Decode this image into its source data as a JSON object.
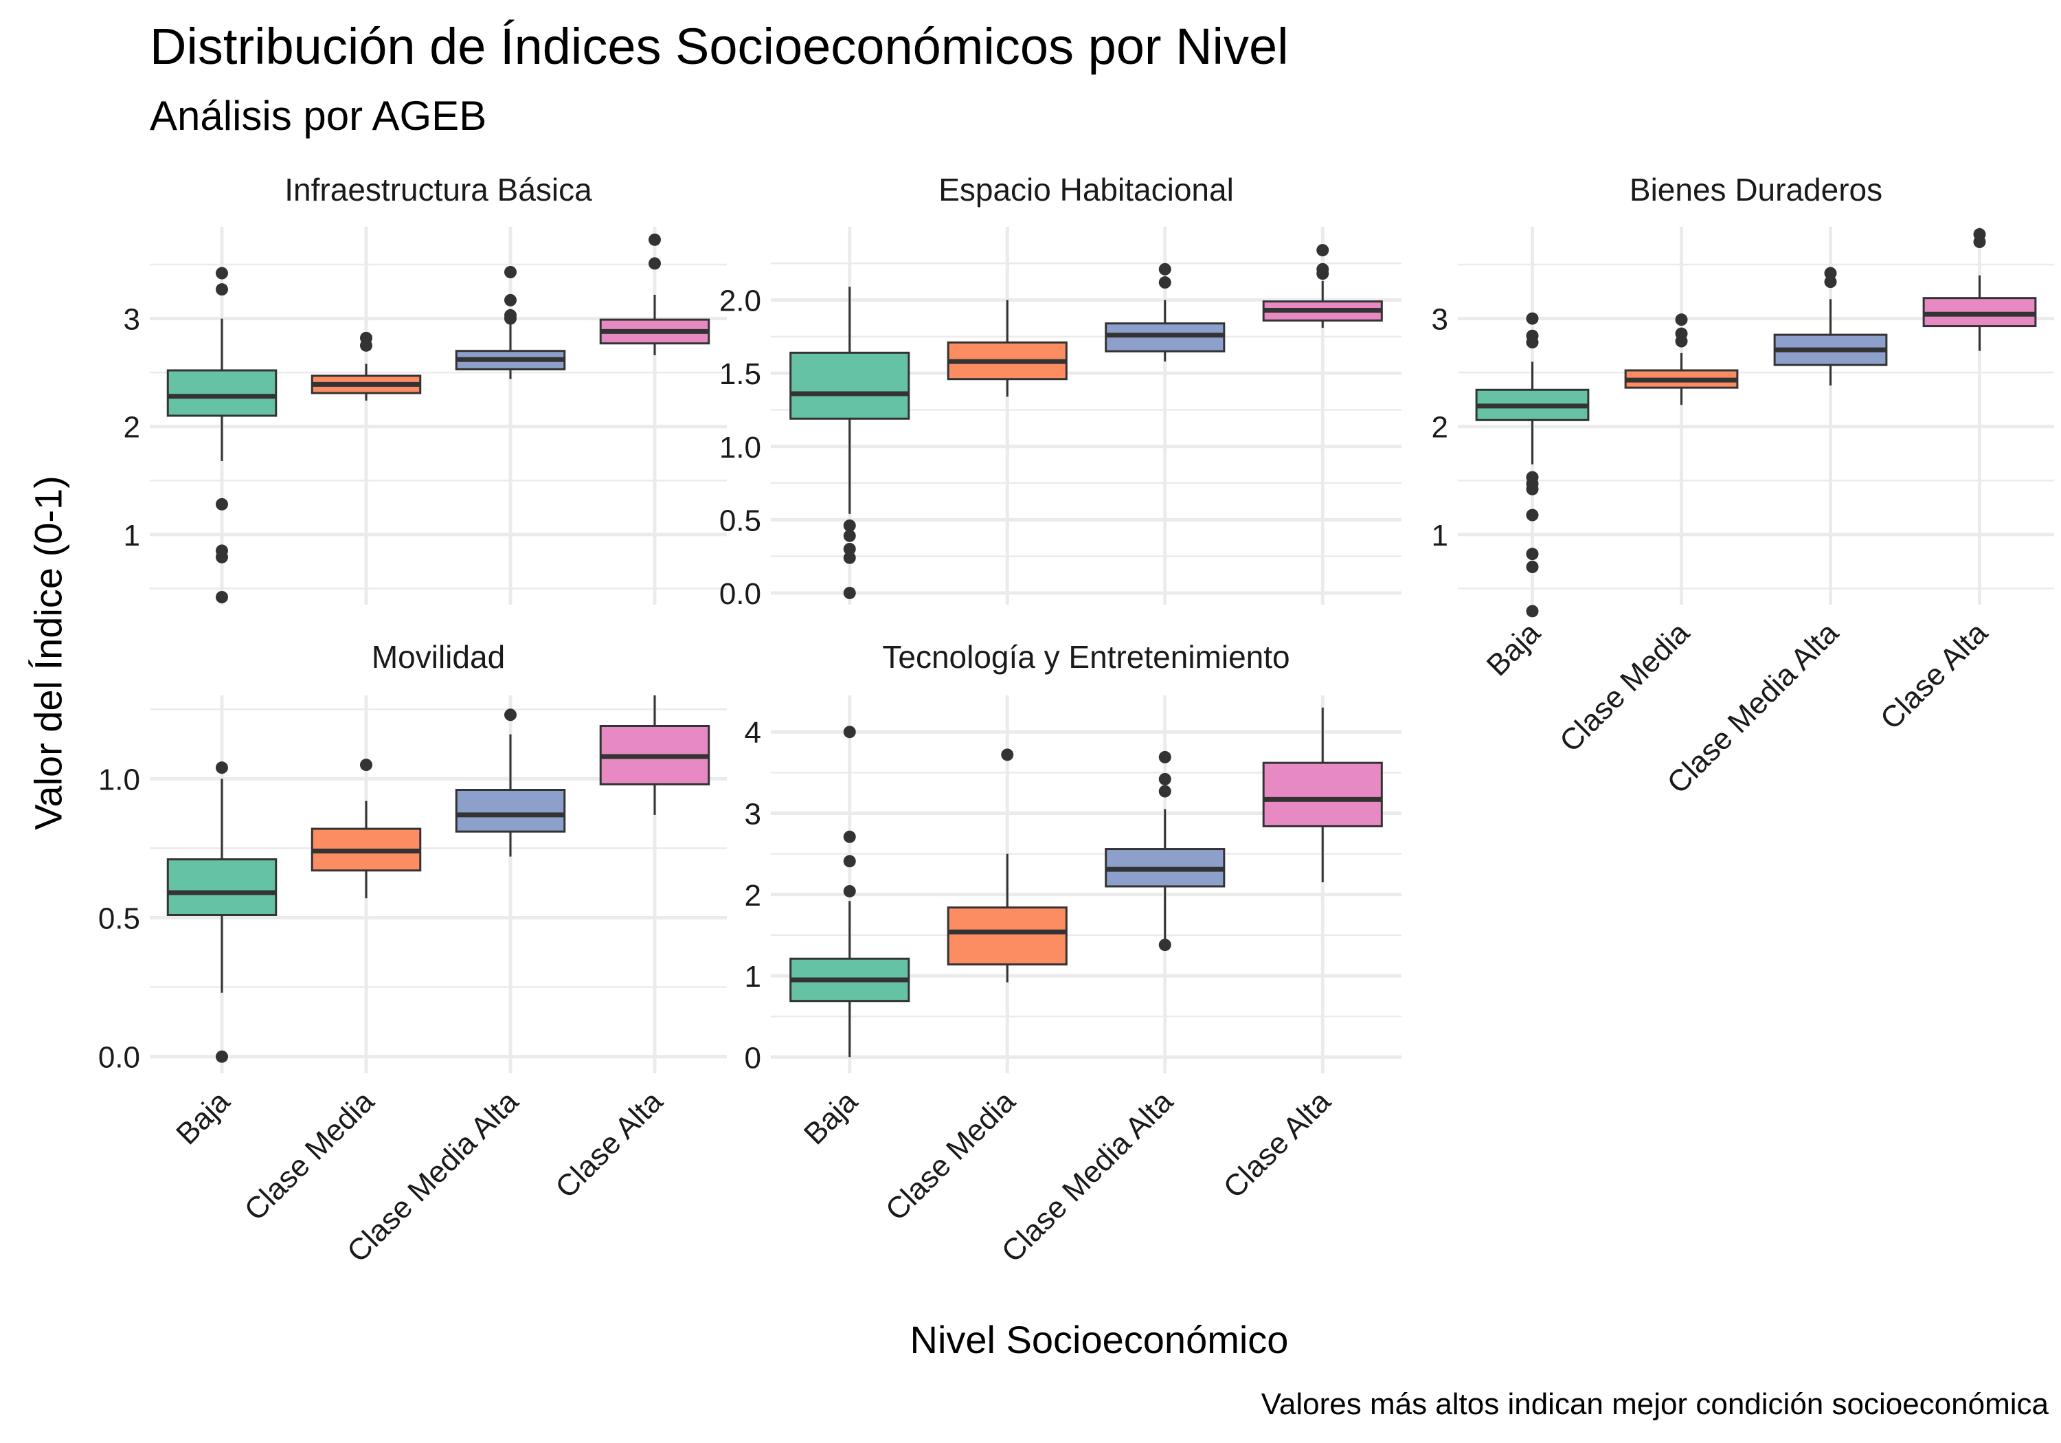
{
  "title": "Distribución de Índices Socioeconómicos por Nivel",
  "subtitle": "Análisis por AGEB",
  "ylabel": "Valor del Índice (0-1)",
  "xlabel": "Nivel Socioeconómico",
  "caption": "Valores más altos indican mejor condición socioeconómica",
  "colors": {
    "Baja": "#66c2a5",
    "Clase Media": "#fc8d62",
    "Clase Media Alta": "#8da0cb",
    "Clase Alta": "#e78ac3",
    "gridline": "#ebebeb",
    "box_outline": "#333333",
    "outlier": "#333333"
  },
  "chart_data": [
    {
      "type": "boxplot",
      "title": "Infraestructura Básica",
      "categories": [
        "Baja",
        "Clase Media",
        "Clase Media Alta",
        "Clase Alta"
      ],
      "ylim": [
        0.35,
        3.85
      ],
      "yticks": [
        1,
        2,
        3
      ],
      "boxes": [
        {
          "category": "Baja",
          "whisker_low": 1.68,
          "q1": 2.1,
          "median": 2.28,
          "q3": 2.52,
          "whisker_high": 3.0,
          "outliers": [
            0.42,
            0.79,
            0.85,
            1.28,
            3.27,
            3.42
          ]
        },
        {
          "category": "Clase Media",
          "whisker_low": 2.24,
          "q1": 2.31,
          "median": 2.39,
          "q3": 2.47,
          "whisker_high": 2.58,
          "outliers": [
            2.75,
            2.82
          ]
        },
        {
          "category": "Clase Media Alta",
          "whisker_low": 2.44,
          "q1": 2.53,
          "median": 2.62,
          "q3": 2.7,
          "whisker_high": 2.95,
          "outliers": [
            3.0,
            3.03,
            3.17,
            3.43
          ]
        },
        {
          "category": "Clase Alta",
          "whisker_low": 2.66,
          "q1": 2.77,
          "median": 2.88,
          "q3": 2.99,
          "whisker_high": 3.22,
          "outliers": [
            3.51,
            3.73
          ]
        }
      ]
    },
    {
      "type": "boxplot",
      "title": "Espacio Habitacional",
      "categories": [
        "Baja",
        "Clase Media",
        "Clase Media Alta",
        "Clase Alta"
      ],
      "ylim": [
        -0.08,
        2.5
      ],
      "yticks": [
        0.0,
        0.5,
        1.0,
        1.5,
        2.0
      ],
      "ytick_labels": [
        "0.0",
        "0.5",
        "1.0",
        "1.5",
        "2.0"
      ],
      "boxes": [
        {
          "category": "Baja",
          "whisker_low": 0.54,
          "q1": 1.19,
          "median": 1.36,
          "q3": 1.64,
          "whisker_high": 2.09,
          "outliers": [
            0.0,
            0.24,
            0.3,
            0.39,
            0.46
          ]
        },
        {
          "category": "Clase Media",
          "whisker_low": 1.34,
          "q1": 1.46,
          "median": 1.58,
          "q3": 1.71,
          "whisker_high": 2.0,
          "outliers": []
        },
        {
          "category": "Clase Media Alta",
          "whisker_low": 1.58,
          "q1": 1.65,
          "median": 1.76,
          "q3": 1.84,
          "whisker_high": 2.0,
          "outliers": [
            2.12,
            2.21
          ]
        },
        {
          "category": "Clase Alta",
          "whisker_low": 1.81,
          "q1": 1.86,
          "median": 1.93,
          "q3": 1.99,
          "whisker_high": 2.13,
          "outliers": [
            2.18,
            2.21,
            2.34
          ]
        }
      ]
    },
    {
      "type": "boxplot",
      "title": "Bienes Duraderos",
      "categories": [
        "Baja",
        "Clase Media",
        "Clase Media Alta",
        "Clase Alta"
      ],
      "ylim": [
        0.35,
        3.85
      ],
      "yticks": [
        1,
        2,
        3
      ],
      "boxes": [
        {
          "category": "Baja",
          "whisker_low": 1.65,
          "q1": 2.06,
          "median": 2.19,
          "q3": 2.34,
          "whisker_high": 2.6,
          "outliers": [
            0.29,
            0.7,
            0.82,
            1.18,
            1.42,
            1.47,
            1.53,
            2.78,
            2.84,
            3.0
          ]
        },
        {
          "category": "Clase Media",
          "whisker_low": 2.2,
          "q1": 2.36,
          "median": 2.43,
          "q3": 2.52,
          "whisker_high": 2.68,
          "outliers": [
            2.79,
            2.86,
            2.99
          ]
        },
        {
          "category": "Clase Media Alta",
          "whisker_low": 2.38,
          "q1": 2.57,
          "median": 2.71,
          "q3": 2.85,
          "whisker_high": 3.18,
          "outliers": [
            3.34,
            3.42
          ]
        },
        {
          "category": "Clase Alta",
          "whisker_low": 2.7,
          "q1": 2.93,
          "median": 3.04,
          "q3": 3.19,
          "whisker_high": 3.4,
          "outliers": [
            3.71,
            3.78
          ]
        }
      ]
    },
    {
      "type": "boxplot",
      "title": "Movilidad",
      "categories": [
        "Baja",
        "Clase Media",
        "Clase Media Alta",
        "Clase Alta"
      ],
      "ylim": [
        -0.06,
        1.3
      ],
      "yticks": [
        0.0,
        0.5,
        1.0
      ],
      "ytick_labels": [
        "0.0",
        "0.5",
        "1.0"
      ],
      "boxes": [
        {
          "category": "Baja",
          "whisker_low": 0.23,
          "q1": 0.51,
          "median": 0.59,
          "q3": 0.71,
          "whisker_high": 1.0,
          "outliers": [
            0.0,
            1.04
          ]
        },
        {
          "category": "Clase Media",
          "whisker_low": 0.57,
          "q1": 0.67,
          "median": 0.74,
          "q3": 0.82,
          "whisker_high": 0.92,
          "outliers": [
            1.05
          ]
        },
        {
          "category": "Clase Media Alta",
          "whisker_low": 0.72,
          "q1": 0.81,
          "median": 0.87,
          "q3": 0.96,
          "whisker_high": 1.16,
          "outliers": [
            1.23
          ]
        },
        {
          "category": "Clase Alta",
          "whisker_low": 0.87,
          "q1": 0.98,
          "median": 1.08,
          "q3": 1.19,
          "whisker_high": 1.3,
          "outliers": []
        }
      ]
    },
    {
      "type": "boxplot",
      "title": "Tecnología y Entretenimiento",
      "categories": [
        "Baja",
        "Clase Media",
        "Clase Media Alta",
        "Clase Alta"
      ],
      "ylim": [
        -0.2,
        4.45
      ],
      "yticks": [
        0,
        1,
        2,
        3,
        4
      ],
      "boxes": [
        {
          "category": "Baja",
          "whisker_low": 0.0,
          "q1": 0.69,
          "median": 0.95,
          "q3": 1.21,
          "whisker_high": 1.92,
          "outliers": [
            2.04,
            2.41,
            2.71,
            4.0
          ]
        },
        {
          "category": "Clase Media",
          "whisker_low": 0.92,
          "q1": 1.14,
          "median": 1.54,
          "q3": 1.84,
          "whisker_high": 2.5,
          "outliers": [
            3.72
          ]
        },
        {
          "category": "Clase Media Alta",
          "whisker_low": 1.45,
          "q1": 2.1,
          "median": 2.31,
          "q3": 2.56,
          "whisker_high": 3.05,
          "outliers": [
            1.38,
            3.27,
            3.42,
            3.69
          ]
        },
        {
          "category": "Clase Alta",
          "whisker_low": 2.15,
          "q1": 2.84,
          "median": 3.17,
          "q3": 3.62,
          "whisker_high": 4.3,
          "outliers": []
        }
      ]
    }
  ]
}
